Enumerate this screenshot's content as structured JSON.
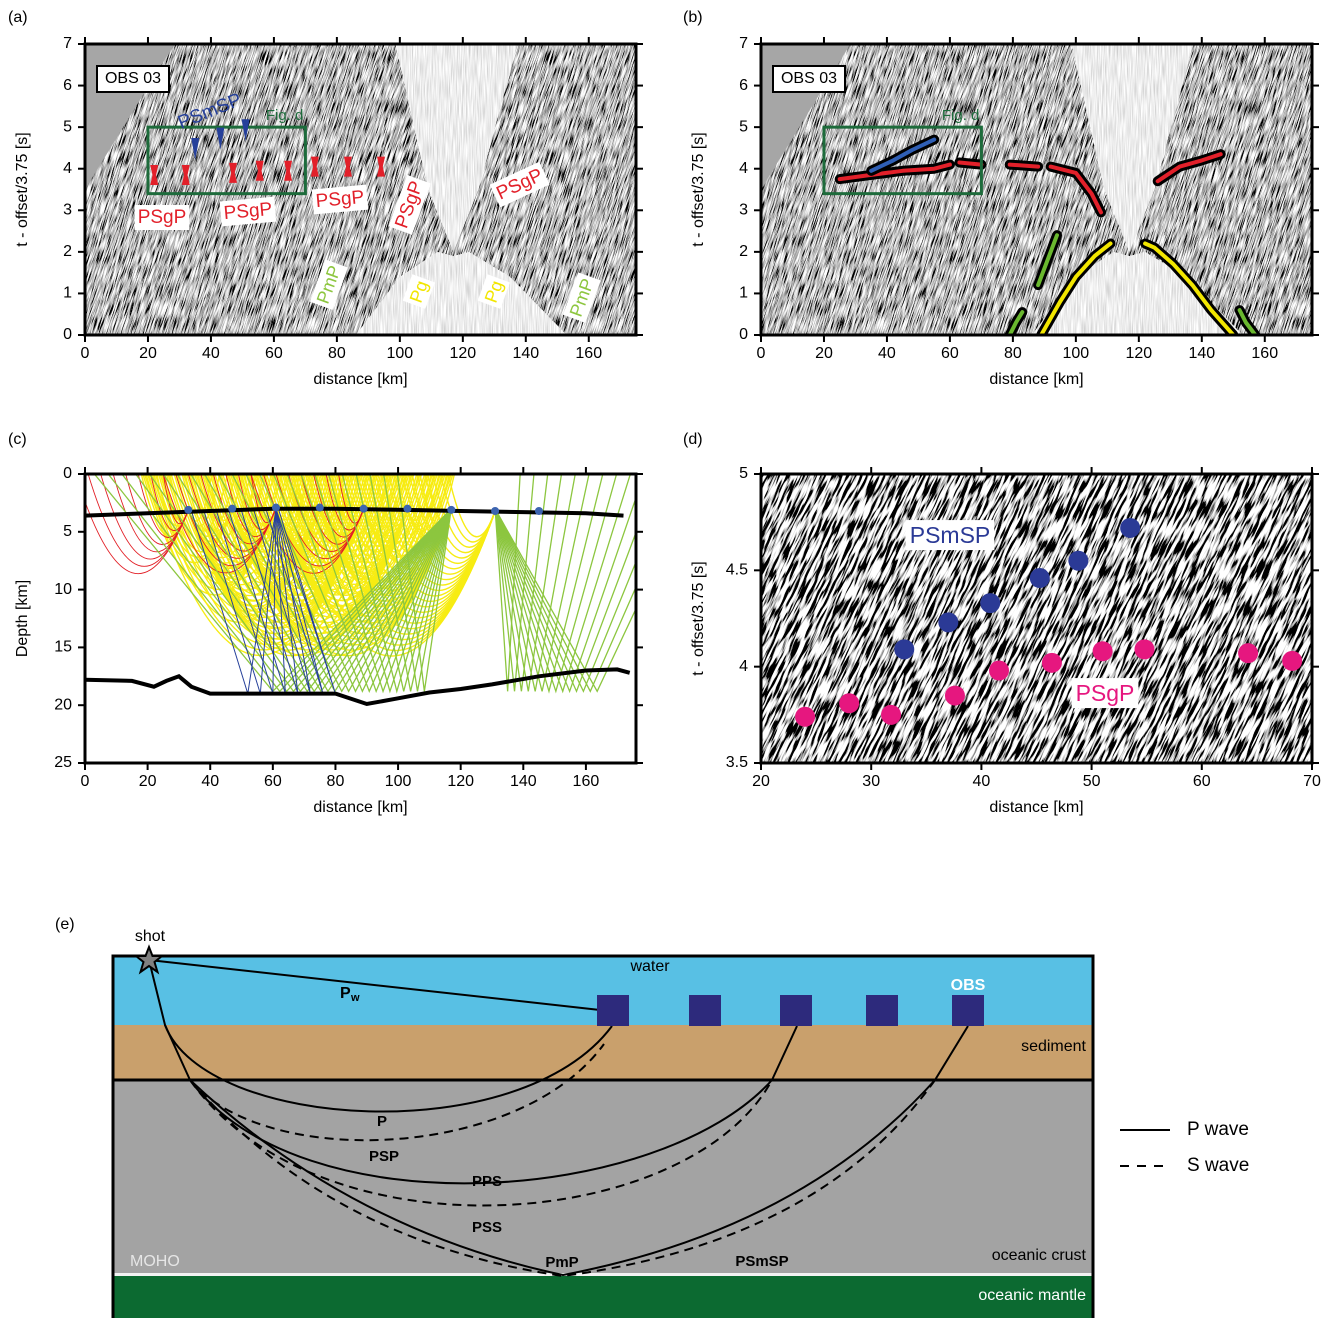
{
  "panel_labels": [
    "(a)",
    "(b)",
    "(c)",
    "(d)",
    "(e)"
  ],
  "chart_data": [
    {
      "type": "seismic",
      "station": "OBS 03",
      "xlabel": "distance [km]",
      "ylabel": "t - offset/3.75 [s]",
      "xlim": [
        0,
        175
      ],
      "ylim": [
        0,
        7
      ],
      "xticks": [
        0,
        20,
        40,
        60,
        80,
        100,
        120,
        140,
        160
      ],
      "yticks": [
        0,
        1,
        2,
        3,
        4,
        5,
        6,
        7
      ],
      "zoom_box": {
        "label": "Fig. d",
        "x": [
          20,
          70
        ],
        "y": [
          3.4,
          5
        ],
        "color": "#1d6b3b"
      },
      "annotations": [
        {
          "text": "PSmSP",
          "color": "#26409a"
        },
        {
          "text": "PSgP",
          "color": "#e2202a"
        },
        {
          "text": "PSgP",
          "color": "#e2202a"
        },
        {
          "text": "PSgP",
          "color": "#e2202a"
        },
        {
          "text": "PSgP",
          "color": "#e2202a"
        },
        {
          "text": "PSgP",
          "color": "#e2202a"
        },
        {
          "text": "PmP",
          "color": "#8dc63f"
        },
        {
          "text": "Pg",
          "color": "#f2e600"
        },
        {
          "text": "Pg",
          "color": "#f2e600"
        },
        {
          "text": "PmP",
          "color": "#8dc63f"
        }
      ]
    },
    {
      "type": "seismic",
      "station": "OBS 03",
      "xlabel": "distance [km]",
      "ylabel": "t - offset/3.75 [s]",
      "xlim": [
        0,
        175
      ],
      "ylim": [
        0,
        7
      ],
      "xticks": [
        0,
        20,
        40,
        60,
        80,
        100,
        120,
        140,
        160
      ],
      "yticks": [
        0,
        1,
        2,
        3,
        4,
        5,
        6,
        7
      ],
      "zoom_box": {
        "label": "Fig. d",
        "x": [
          20,
          70
        ],
        "y": [
          3.4,
          5
        ],
        "color": "#1d6b3b"
      },
      "series": [
        {
          "color": "#e2202a",
          "x": [
            25,
            35,
            45,
            55,
            60,
            61,
            63,
            70,
            72,
            79,
            88,
            90,
            92,
            100,
            105,
            108,
            117,
            126,
            133,
            140,
            146
          ],
          "values": [
            3.75,
            3.85,
            3.95,
            4.0,
            4.1,
            null,
            4.15,
            4.1,
            null,
            4.1,
            4.05,
            null,
            4.05,
            3.9,
            3.4,
            2.95,
            null,
            3.7,
            4.05,
            4.2,
            4.35
          ]
        },
        {
          "color": "#2f5fb5",
          "x": [
            35,
            42,
            48,
            55
          ],
          "values": [
            3.95,
            4.2,
            4.45,
            4.7
          ]
        },
        {
          "color": "#f2e600",
          "x": [
            89,
            95,
            100,
            106,
            111,
            113,
            122,
            125,
            131,
            137,
            143,
            150
          ],
          "values": [
            0,
            0.8,
            1.4,
            1.9,
            2.2,
            null,
            2.2,
            2.1,
            1.7,
            1.2,
            0.6,
            0
          ]
        },
        {
          "color": "#6ab82f",
          "x": [
            79,
            81,
            83,
            85,
            88,
            91,
            94,
            96,
            152,
            154,
            157
          ],
          "values": [
            0,
            0.3,
            0.55,
            null,
            1.2,
            1.8,
            2.4,
            null,
            0.6,
            0.3,
            0
          ]
        }
      ]
    },
    {
      "type": "ray",
      "xlabel": "distance [km]",
      "ylabel": "Depth [km]",
      "invert_y": true,
      "xlim": [
        0,
        176
      ],
      "ylim": [
        0,
        25
      ],
      "xticks": [
        0,
        20,
        40,
        60,
        80,
        100,
        120,
        140,
        160
      ],
      "yticks": [
        0,
        5,
        10,
        15,
        20,
        25
      ],
      "series": [
        {
          "mode": "line",
          "color": "#000000",
          "x": [
            0,
            20,
            40,
            60,
            80,
            100,
            120,
            140,
            160,
            172
          ],
          "values": [
            3.6,
            3.4,
            3.2,
            3.0,
            3.0,
            3.1,
            3.2,
            3.3,
            3.4,
            3.6
          ]
        },
        {
          "mode": "line",
          "color": "#000000",
          "x": [
            0,
            15,
            22,
            26,
            30,
            34,
            40,
            60,
            80,
            90,
            100,
            110,
            120,
            130,
            145,
            160,
            170,
            174
          ],
          "values": [
            17.8,
            17.9,
            18.4,
            17.9,
            17.5,
            18.4,
            19.0,
            19.0,
            19.0,
            19.9,
            19.4,
            18.9,
            18.6,
            18.2,
            17.5,
            17.0,
            16.9,
            17.2
          ]
        },
        {
          "mode": "markers",
          "color": "#3c64b0",
          "x": [
            33,
            47,
            61,
            75,
            89,
            103,
            117,
            131,
            145
          ],
          "values": [
            3.1,
            3.0,
            2.9,
            2.9,
            3.0,
            3.0,
            3.1,
            3.2,
            3.2
          ]
        }
      ]
    },
    {
      "type": "scatter",
      "xlabel": "distance [km]",
      "ylabel": "t - offset/3.75 [s]",
      "xlim": [
        20,
        70
      ],
      "ylim": [
        3.5,
        5
      ],
      "xticks": [
        20,
        30,
        40,
        50,
        60,
        70
      ],
      "yticks": [
        3.5,
        4,
        4.5,
        5
      ],
      "series": [
        {
          "name": "PSmSP",
          "color": "#2b3a96",
          "x": [
            33,
            37,
            40.8,
            45.3,
            48.8,
            53.5
          ],
          "values": [
            4.09,
            4.23,
            4.33,
            4.46,
            4.55,
            4.72
          ]
        },
        {
          "name": "PSgP",
          "color": "#e6177f",
          "x": [
            24,
            28,
            31.8,
            37.6,
            41.6,
            46.4,
            51,
            54.8,
            64.2,
            68.2
          ],
          "values": [
            3.74,
            3.81,
            3.75,
            3.85,
            3.98,
            4.02,
            4.08,
            4.09,
            4.07,
            4.03
          ]
        }
      ]
    }
  ],
  "diagram": {
    "shot": "shot",
    "water": "water",
    "pw": "P",
    "pw_sub": "w",
    "obs": "OBS",
    "sediment": "sediment",
    "rays": {
      "p": "P",
      "psp": "PSP",
      "pps": "PPS",
      "pss": "PSS",
      "pmp": "PmP",
      "psmsp": "PSmSP"
    },
    "moho": "MOHO",
    "crust": "oceanic crust",
    "mantle": "oceanic mantle",
    "legend": [
      "P wave",
      "S wave"
    ]
  }
}
